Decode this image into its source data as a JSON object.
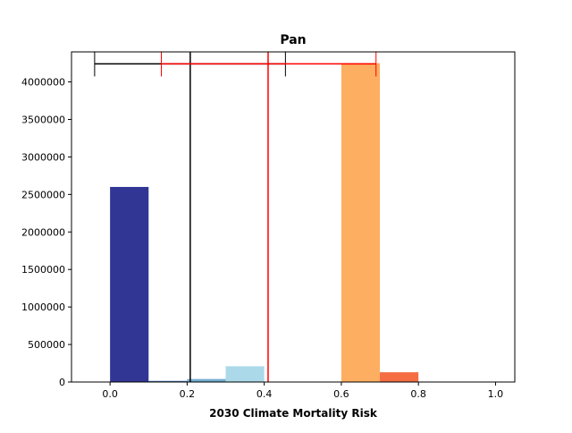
{
  "chart_data": {
    "type": "bar",
    "title": "Pan",
    "xlabel": "2030 Climate Mortality Risk",
    "ylabel": "",
    "xlim": [
      -0.1,
      1.05
    ],
    "ylim": [
      0,
      4400000
    ],
    "x_ticks": [
      0.0,
      0.2,
      0.4,
      0.6,
      0.8,
      1.0
    ],
    "x_tick_labels": [
      "0.0",
      "0.2",
      "0.4",
      "0.6",
      "0.8",
      "1.0"
    ],
    "y_ticks": [
      0,
      500000,
      1000000,
      1500000,
      2000000,
      2500000,
      3000000,
      3500000,
      4000000
    ],
    "y_tick_labels": [
      "0",
      "500000",
      "1000000",
      "1500000",
      "2000000",
      "2500000",
      "3000000",
      "3500000",
      "4000000"
    ],
    "grid": false,
    "bins": [
      {
        "x0": 0.0,
        "x1": 0.1,
        "value": 2600000,
        "color": "#313695"
      },
      {
        "x0": 0.1,
        "x1": 0.2,
        "value": 15000,
        "color": "#4575b4"
      },
      {
        "x0": 0.2,
        "x1": 0.3,
        "value": 40000,
        "color": "#74add1"
      },
      {
        "x0": 0.3,
        "x1": 0.4,
        "value": 210000,
        "color": "#abd9e9"
      },
      {
        "x0": 0.4,
        "x1": 0.5,
        "value": 0,
        "color": "#e0f3f8"
      },
      {
        "x0": 0.5,
        "x1": 0.6,
        "value": 0,
        "color": "#fee090"
      },
      {
        "x0": 0.6,
        "x1": 0.7,
        "value": 4250000,
        "color": "#fdae61"
      },
      {
        "x0": 0.7,
        "x1": 0.8,
        "value": 130000,
        "color": "#f46d43"
      },
      {
        "x0": 0.8,
        "x1": 0.9,
        "value": 0,
        "color": "#d73027"
      },
      {
        "x0": 0.9,
        "x1": 1.0,
        "value": 0,
        "color": "#a50026"
      }
    ],
    "reference_lines": [
      {
        "x": 0.208,
        "color": "#000000"
      },
      {
        "x": 0.41,
        "color": "#ff0000"
      }
    ],
    "error_bars": [
      {
        "y": 4240000,
        "x_low": -0.04,
        "x_high": 0.455,
        "color": "#000000"
      },
      {
        "y": 4240000,
        "x_low": 0.133,
        "x_high": 0.69,
        "color": "#ff0000"
      }
    ]
  }
}
